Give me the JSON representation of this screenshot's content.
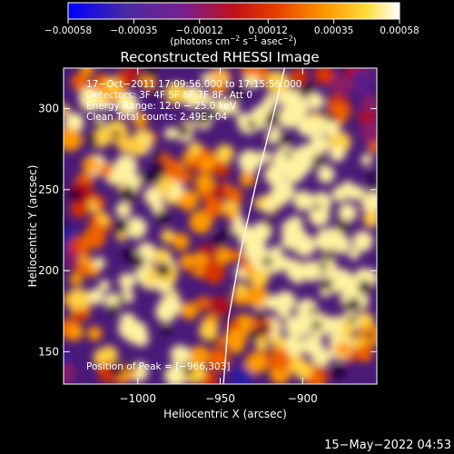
{
  "chart_data": {
    "type": "heatmap",
    "title": "Reconstructed RHESSI Image",
    "xlabel": "Heliocentric X (arcsec)",
    "ylabel": "Heliocentric Y (arcsec)",
    "xlim": [
      -1045,
      -855
    ],
    "ylim": [
      130,
      325
    ],
    "x_ticks": [
      -1000,
      -950,
      -900
    ],
    "x_tick_labels": [
      "−1000",
      "−950",
      "−900"
    ],
    "y_ticks": [
      150,
      200,
      250,
      300
    ],
    "y_tick_labels": [
      "150",
      "200",
      "250",
      "300"
    ],
    "colorbar": {
      "min": -0.00058,
      "max": 0.00058,
      "tick_values": [
        -0.00058,
        -0.00035,
        -0.00012,
        0.00012,
        0.00035,
        0.00058
      ],
      "tick_labels": [
        "−0.00058",
        "−0.00035",
        "−0.00012",
        "0.00012",
        "0.00035",
        "0.00058"
      ],
      "unit_label": "(photons cm",
      "unit_sup1": "−2",
      "unit_mid1": " s",
      "unit_sup2": "−1",
      "unit_mid2": " asec",
      "unit_sup3": "−2",
      "unit_end": ")"
    },
    "annotations": [
      "17−Oct−2011 17:09:56.000 to 17:15:56.000",
      "Detectors: 3F 4F 5F 6F 7F 8F, Att 0",
      "Energy Range: 12.0 − 25.0 keV",
      "Clean     Total counts: 2.49E+04"
    ],
    "peak_label": "Position of Peak = [−966,303]",
    "peak": [
      -966,
      303
    ],
    "limb_curve": [
      [
        -948,
        130
      ],
      [
        -945,
        170
      ],
      [
        -938,
        210
      ],
      [
        -928,
        255
      ],
      [
        -918,
        295
      ],
      [
        -911,
        325
      ]
    ],
    "footer": "15−May−2022 04:53"
  }
}
